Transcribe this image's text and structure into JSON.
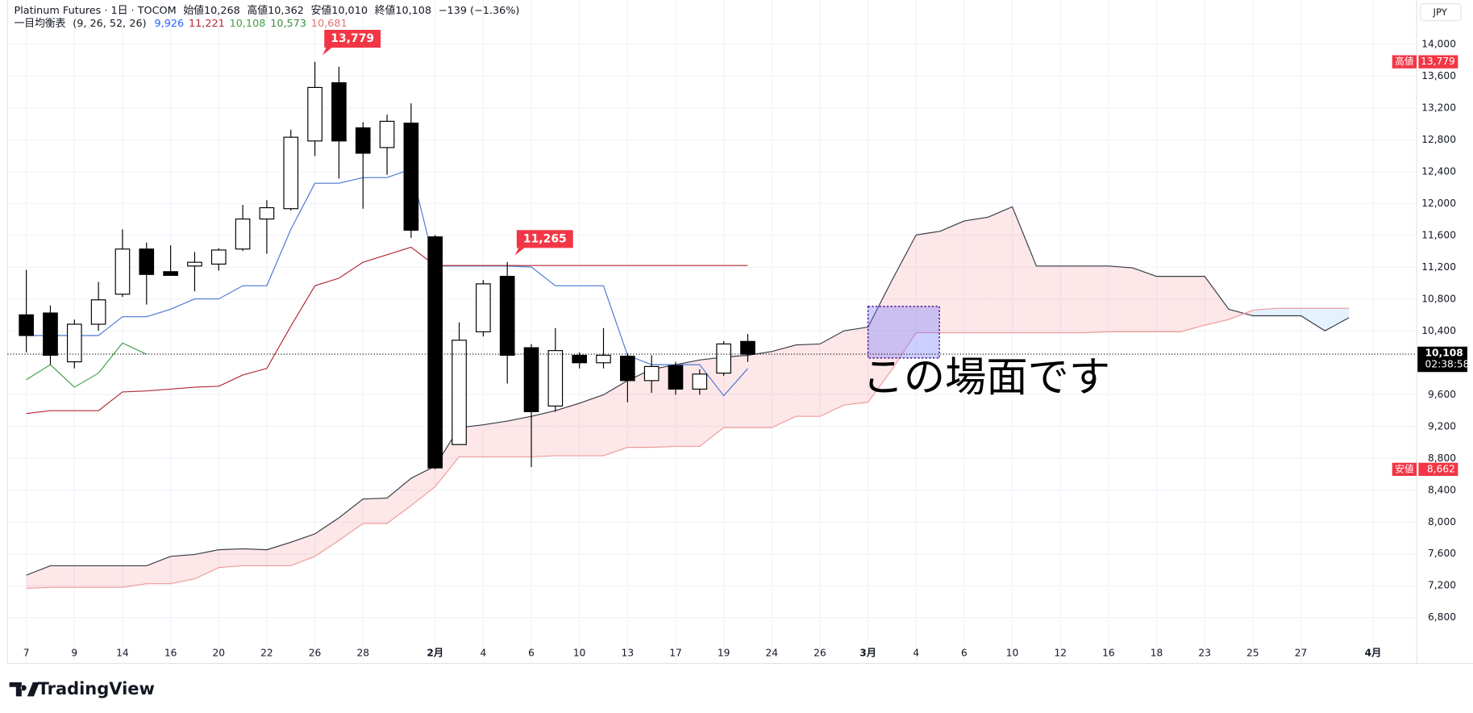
{
  "header": {
    "symbol": "Platinum Futures · 1日 · TOCOM",
    "open": "始値10,268",
    "high": "高値10,362",
    "low": "安値10,010",
    "close": "終値10,108",
    "change": "−139 (−1.36%)"
  },
  "indicator": {
    "name": "一目均衡表",
    "params": "(9, 26, 52, 26)"
  },
  "branding": "TradingView",
  "chart_data": {
    "type": "candlestick",
    "categories": [
      "7",
      null,
      "9",
      null,
      "14",
      null,
      "16",
      null,
      "20",
      null,
      "22",
      null,
      "26",
      null,
      "28",
      null,
      null,
      "2月",
      null,
      "4",
      null,
      "6",
      null,
      "10",
      null,
      "13",
      null,
      "17",
      null,
      "19",
      null,
      "24",
      null,
      "26",
      null,
      "3月",
      null,
      "4",
      null,
      "6",
      null,
      "10",
      null,
      "12",
      null,
      "16",
      null,
      "18",
      null,
      "23",
      null,
      "25",
      null,
      "27",
      null,
      null,
      "4月"
    ],
    "open": [
      10602,
      10625,
      10012,
      10484,
      10861,
      11428,
      11144,
      11215,
      11239,
      11428,
      11805,
      11935,
      12785,
      13516,
      12950,
      12702,
      13009,
      11581,
      8973,
      10389,
      11085,
      10189,
      9457,
      10094,
      10000,
      10082,
      9776,
      9964,
      9669,
      9870,
      10268,
      null,
      null,
      null,
      null,
      null,
      null,
      null,
      null,
      null,
      null,
      null,
      null,
      null,
      null,
      null,
      null,
      null,
      null,
      null,
      null,
      null,
      null,
      null,
      null,
      null,
      null
    ],
    "high": [
      11168,
      10720,
      10543,
      11015,
      11675,
      11510,
      11475,
      11392,
      11439,
      11982,
      12041,
      12926,
      13779,
      13717,
      13021,
      13115,
      13257,
      11605,
      10507,
      11038,
      11265,
      10236,
      10436,
      10130,
      10436,
      10118,
      10094,
      10012,
      9917,
      10271,
      10362,
      null,
      null,
      null,
      null,
      null,
      null,
      null,
      null,
      null,
      null,
      null,
      null,
      null,
      null,
      null,
      null,
      null,
      null,
      null,
      null,
      null,
      null,
      null,
      null,
      null,
      null
    ],
    "low": [
      10130,
      9976,
      9929,
      10401,
      10826,
      10731,
      11097,
      10897,
      11156,
      11404,
      11369,
      11911,
      12596,
      12313,
      11935,
      12360,
      11569,
      8662,
      8973,
      10330,
      9740,
      8690,
      9386,
      9929,
      9929,
      9504,
      9622,
      9598,
      9598,
      9835,
      10010,
      null,
      null,
      null,
      null,
      null,
      null,
      null,
      null,
      null,
      null,
      null,
      null,
      null,
      null,
      null,
      null,
      null,
      null,
      null,
      null,
      null,
      null,
      null,
      null,
      null,
      null
    ],
    "close": [
      10342,
      10094,
      10484,
      10790,
      11428,
      11109,
      11097,
      11262,
      11416,
      11805,
      11947,
      12832,
      13457,
      12785,
      12631,
      13032,
      11664,
      8680,
      10283,
      10991,
      10094,
      9386,
      10153,
      10000,
      10094,
      9776,
      9953,
      9669,
      9858,
      10236,
      10108,
      null,
      null,
      null,
      null,
      null,
      null,
      null,
      null,
      null,
      null,
      null,
      null,
      null,
      null,
      null,
      null,
      null,
      null,
      null,
      null,
      null,
      null,
      null,
      null,
      null,
      null
    ],
    "up_color": "#ffffff",
    "down_color": "#000000",
    "lines": [
      {
        "value_label": "9,926",
        "color": "#4a77d4",
        "label_color": "#2962ff",
        "values": [
          10342,
          10342,
          10342,
          10342,
          10578,
          10578,
          10672,
          10802,
          10802,
          10967,
          10967,
          11675,
          12254,
          12254,
          12325,
          12325,
          12431,
          11215,
          11215,
          11215,
          11215,
          11203,
          10967,
          10967,
          10967,
          10094,
          9976,
          9976,
          9976,
          9587,
          9926,
          null,
          null,
          null,
          null,
          null,
          null,
          null,
          null,
          null,
          null,
          null,
          null,
          null,
          null,
          null,
          null,
          null,
          null,
          null,
          null,
          null,
          null,
          null,
          null,
          null,
          null
        ]
      },
      {
        "value_label": "11,221",
        "color": "#b22833",
        "label_color": "#b22833",
        "values": [
          9363,
          9398,
          9398,
          9398,
          9634,
          9646,
          9669,
          9693,
          9705,
          9846,
          9929,
          10460,
          10967,
          11062,
          11262,
          11357,
          11451,
          11221,
          11221,
          11221,
          11221,
          11221,
          11221,
          11221,
          11221,
          11221,
          11221,
          11221,
          11221,
          11221,
          11221,
          null,
          null,
          null,
          null,
          null,
          null,
          null,
          null,
          null,
          null,
          null,
          null,
          null,
          null,
          null,
          null,
          null,
          null,
          null,
          null,
          null,
          null,
          null,
          null,
          null,
          null
        ]
      },
      {
        "value_label": "10,108",
        "color": "#43a047",
        "label_color": "#43a047",
        "values": [
          9787,
          9976,
          9693,
          9870,
          10248,
          10106,
          null,
          null,
          null,
          null,
          null,
          null,
          null,
          null,
          null,
          null,
          null,
          null,
          null,
          null,
          null,
          null,
          null,
          null,
          null,
          null,
          null,
          null,
          null,
          null,
          null,
          null,
          null,
          null,
          null,
          null,
          null,
          null,
          null,
          null,
          null,
          null,
          null,
          null,
          null,
          null,
          null,
          null,
          null,
          null,
          null,
          null,
          null,
          null,
          null,
          null,
          null
        ]
      },
      {
        "value_label": "10,573",
        "color": "#363a45",
        "label_color": "#388e3c",
        "values": [
          7333,
          7451,
          7451,
          7451,
          7451,
          7451,
          7569,
          7593,
          7652,
          7664,
          7652,
          7746,
          7852,
          8053,
          8289,
          8301,
          8549,
          8702,
          9186,
          9221,
          9268,
          9327,
          9398,
          9492,
          9598,
          9776,
          9917,
          9976,
          10035,
          10071,
          10094,
          10141,
          10224,
          10236,
          10401,
          10448,
          11038,
          11605,
          11652,
          11781,
          11829,
          11959,
          11215,
          11215,
          11215,
          11215,
          11192,
          11085,
          11085,
          11085,
          10672,
          10590,
          10590,
          10590,
          10401,
          10566,
          null
        ]
      },
      {
        "value_label": "10,681",
        "color": "#ef9a9a",
        "label_color": "#e57373",
        "values": [
          7168,
          7180,
          7180,
          7180,
          7180,
          7226,
          7226,
          7286,
          7428,
          7451,
          7451,
          7451,
          7569,
          7770,
          7982,
          7982,
          8207,
          8443,
          8820,
          8820,
          8820,
          8820,
          8832,
          8832,
          8832,
          8938,
          8938,
          8950,
          8950,
          9186,
          9186,
          9186,
          9327,
          9327,
          9469,
          9504,
          9917,
          10377,
          10377,
          10377,
          10377,
          10377,
          10377,
          10377,
          10377,
          10389,
          10389,
          10389,
          10389,
          10472,
          10543,
          10660,
          10684,
          10684,
          10684,
          10684,
          null
        ]
      }
    ],
    "cloud_colors": [
      "#f23645",
      "#2196f3"
    ],
    "ylim": [
      6236,
      14555
    ],
    "yticks": [
      {
        "value": 6800,
        "label": "6,800"
      },
      {
        "value": 7200,
        "label": "7,200"
      },
      {
        "value": 7600,
        "label": "7,600"
      },
      {
        "value": 8000,
        "label": "8,000"
      },
      {
        "value": 8400,
        "label": "8,400"
      },
      {
        "value": 8800,
        "label": "8,800"
      },
      {
        "value": 9200,
        "label": "9,200"
      },
      {
        "value": 9600,
        "label": "9,600"
      },
      {
        "value": 10400,
        "label": "10,400"
      },
      {
        "value": 10800,
        "label": "10,800"
      },
      {
        "value": 11200,
        "label": "11,200"
      },
      {
        "value": 11600,
        "label": "11,600"
      },
      {
        "value": 12000,
        "label": "12,000"
      },
      {
        "value": 12400,
        "label": "12,400"
      },
      {
        "value": 12800,
        "label": "12,800"
      },
      {
        "value": 13200,
        "label": "13,200"
      },
      {
        "value": 13600,
        "label": "13,600"
      },
      {
        "value": 14000,
        "label": "14,000"
      }
    ],
    "grid": true,
    "callouts": [
      {
        "label": "13,779",
        "value": 13779
      },
      {
        "label": "11,265",
        "value": 11265
      }
    ],
    "price_labels": [
      {
        "prefix": "高値",
        "label": "13,779",
        "value": 13779
      },
      {
        "prefix": "安値",
        "label": "8,662",
        "value": 8662
      }
    ],
    "label_color": "#f23645",
    "last_price": {
      "label": "10,108",
      "value": 10108,
      "countdown": "02:38:58"
    },
    "currency": "JPY",
    "note": "この場面です"
  }
}
